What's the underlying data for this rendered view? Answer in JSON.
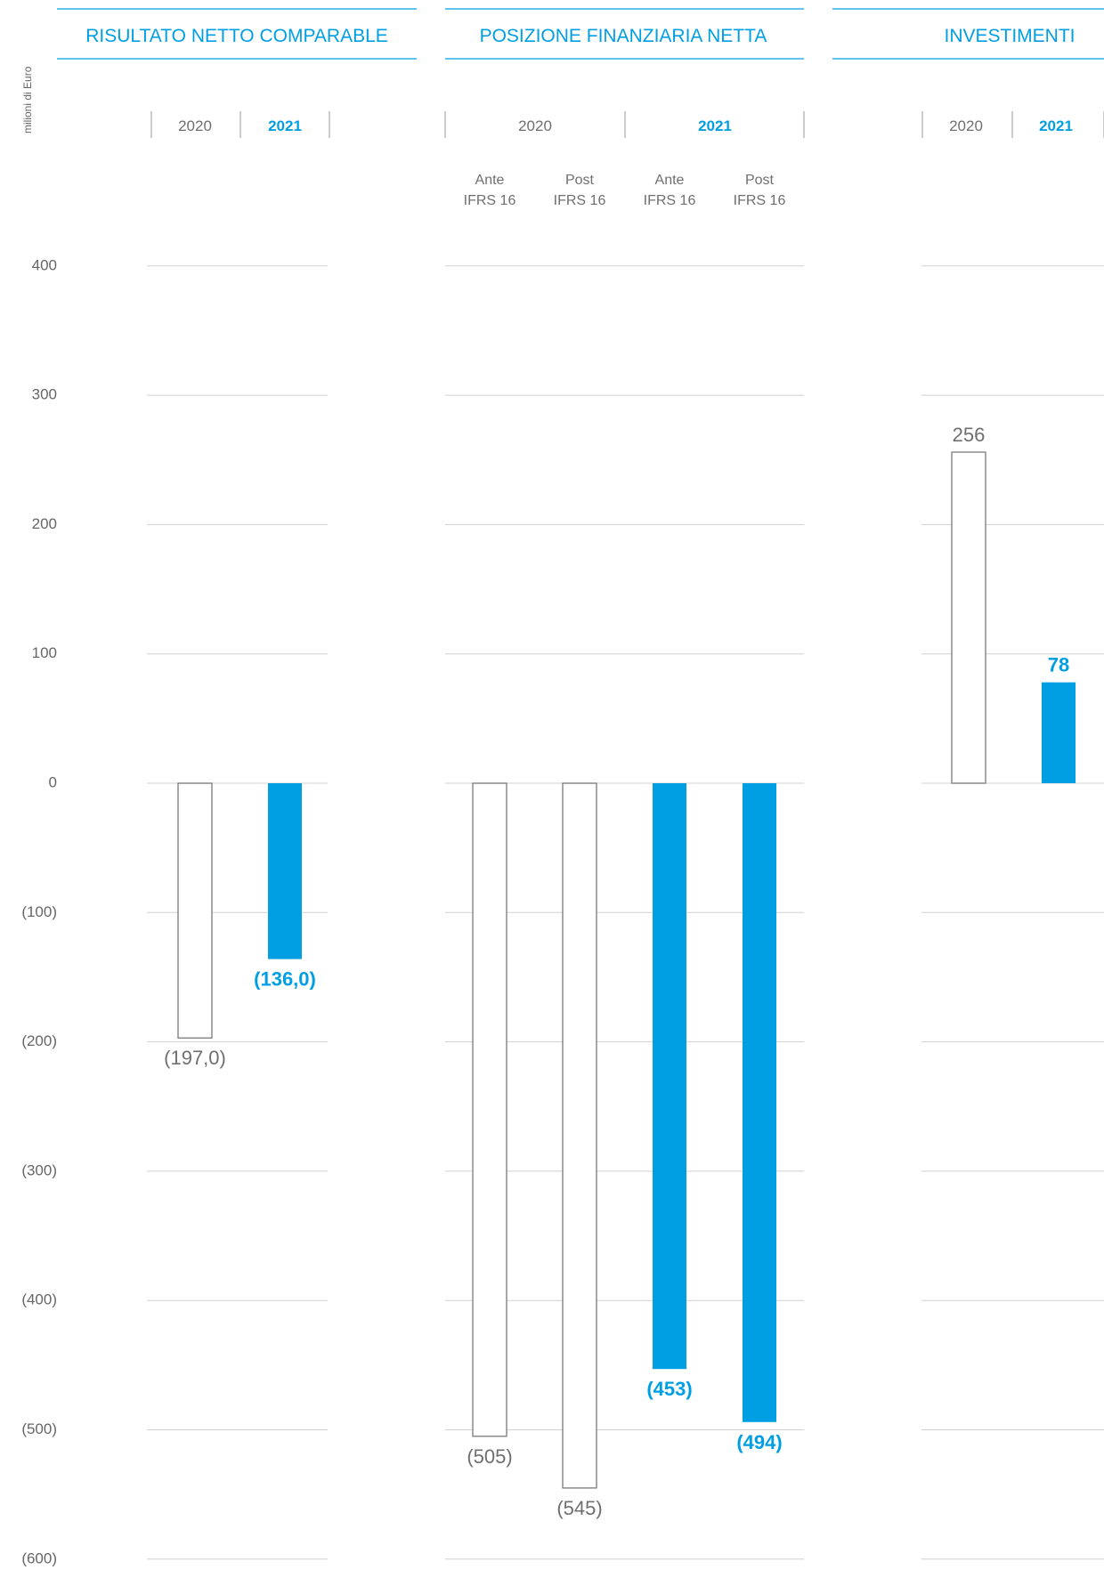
{
  "unit_label": "milioni di Euro",
  "colors": {
    "accent": "#009fe3",
    "neutral": "#6f6f6f",
    "grid": "#d0d0d0",
    "outline": "#7a7a7a"
  },
  "chart_data": [
    {
      "type": "bar",
      "title": "RISULTATO NETTO COMPARABLE",
      "ylabel": "milioni di Euro",
      "ylim": [
        -600,
        400
      ],
      "yticks": [
        "400",
        "300",
        "200",
        "100",
        "0",
        "(100)",
        "(200)",
        "(300)",
        "(400)",
        "(500)",
        "(600)"
      ],
      "groups": [
        "2020",
        "2021"
      ],
      "categories": [
        "2020",
        "2021"
      ],
      "values": [
        -197.0,
        -136.0
      ],
      "value_labels": [
        "(197,0)",
        "(136,0)"
      ]
    },
    {
      "type": "bar",
      "title": "POSIZIONE FINANZIARIA NETTA",
      "ylabel": "milioni di Euro",
      "ylim": [
        -600,
        400
      ],
      "groups": [
        "2020",
        "2021"
      ],
      "categories": [
        "Ante IFRS 16",
        "Post IFRS 16",
        "Ante IFRS 16",
        "Post IFRS 16"
      ],
      "category_lines": [
        [
          "Ante",
          "IFRS 16"
        ],
        [
          "Post",
          "IFRS 16"
        ],
        [
          "Ante",
          "IFRS 16"
        ],
        [
          "Post",
          "IFRS 16"
        ]
      ],
      "category_group": [
        "2020",
        "2020",
        "2021",
        "2021"
      ],
      "values": [
        -505,
        -545,
        -453,
        -494
      ],
      "value_labels": [
        "(505)",
        "(545)",
        "(453)",
        "(494)"
      ]
    },
    {
      "type": "bar",
      "title": "INVESTIMENTI",
      "ylabel": "milioni di Euro",
      "ylim": [
        -600,
        400
      ],
      "groups": [
        "2020",
        "2021"
      ],
      "categories": [
        "2020",
        "2021"
      ],
      "values": [
        256,
        78
      ],
      "value_labels": [
        "256",
        "78"
      ]
    }
  ]
}
